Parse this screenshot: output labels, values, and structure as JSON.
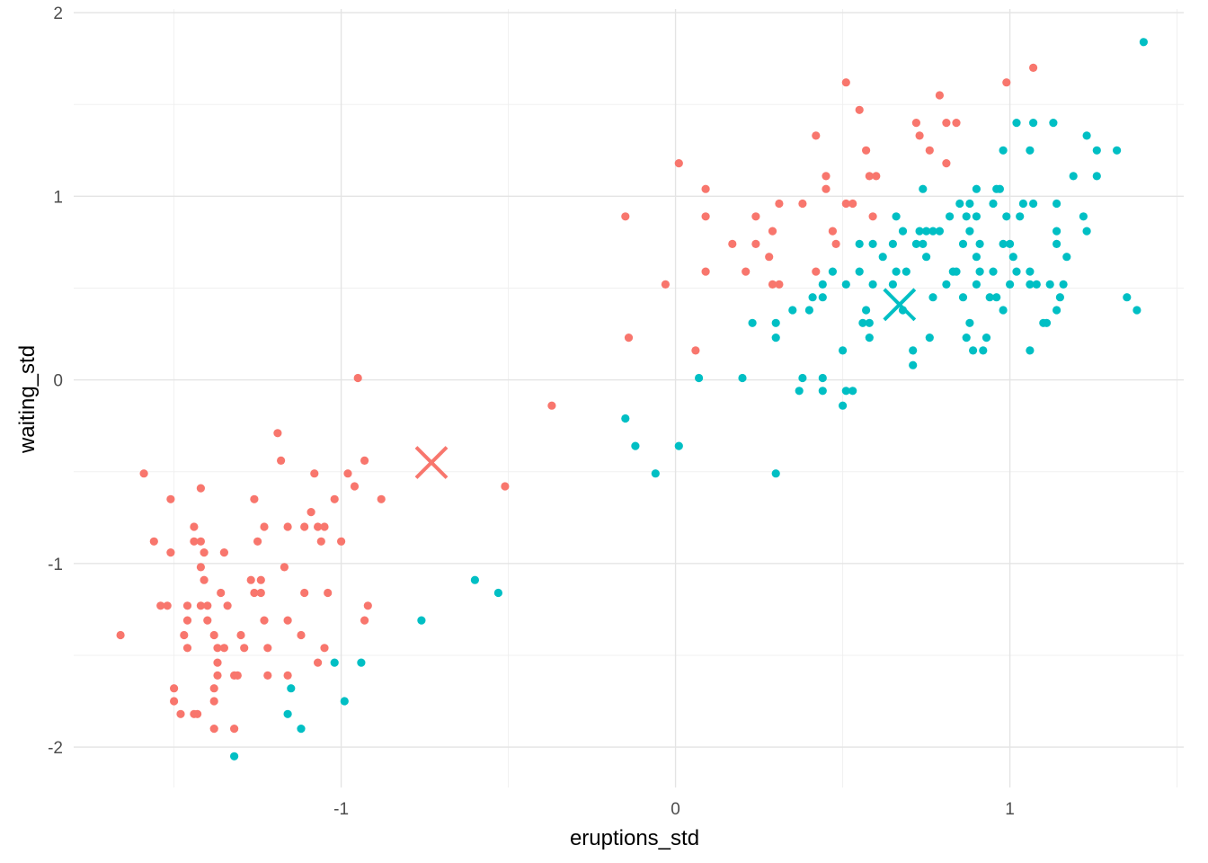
{
  "chart_data": {
    "type": "scatter",
    "title": "",
    "xlabel": "eruptions_std",
    "ylabel": "waiting_std",
    "xlim": [
      -1.8,
      1.52
    ],
    "ylim": [
      -2.22,
      2.02
    ],
    "x_ticks": [
      -1,
      0,
      1
    ],
    "x_tick_labels": [
      "-1",
      "0",
      "1"
    ],
    "y_ticks": [
      -2,
      -1,
      0,
      1,
      2
    ],
    "y_tick_labels": [
      "-2",
      "-1",
      "0",
      "1",
      "2"
    ],
    "grid": true,
    "legend": "none",
    "series": [
      {
        "color": "#F8766D",
        "marker": "circle",
        "points": [
          [
            -1.66,
            -1.39
          ],
          [
            -1.59,
            -0.51
          ],
          [
            -1.56,
            -0.88
          ],
          [
            -1.54,
            -1.23
          ],
          [
            -1.52,
            -1.23
          ],
          [
            -1.51,
            -0.65
          ],
          [
            -1.51,
            -0.94
          ],
          [
            -1.5,
            -1.75
          ],
          [
            -1.5,
            -1.68
          ],
          [
            -1.48,
            -1.82
          ],
          [
            -1.47,
            -1.39
          ],
          [
            -1.46,
            -1.23
          ],
          [
            -1.46,
            -1.31
          ],
          [
            -1.46,
            -1.46
          ],
          [
            -1.44,
            -1.82
          ],
          [
            -1.44,
            -0.8
          ],
          [
            -1.44,
            -0.88
          ],
          [
            -1.43,
            -1.82
          ],
          [
            -1.42,
            -1.02
          ],
          [
            -1.42,
            -0.88
          ],
          [
            -1.42,
            -0.59
          ],
          [
            -1.42,
            -1.23
          ],
          [
            -1.41,
            -0.94
          ],
          [
            -1.41,
            -1.09
          ],
          [
            -1.4,
            -1.23
          ],
          [
            -1.4,
            -1.31
          ],
          [
            -1.38,
            -1.75
          ],
          [
            -1.38,
            -1.68
          ],
          [
            -1.38,
            -1.39
          ],
          [
            -1.38,
            -1.9
          ],
          [
            -1.37,
            -1.61
          ],
          [
            -1.37,
            -1.54
          ],
          [
            -1.37,
            -1.46
          ],
          [
            -1.36,
            -1.16
          ],
          [
            -1.35,
            -0.94
          ],
          [
            -1.35,
            -1.46
          ],
          [
            -1.34,
            -1.23
          ],
          [
            -1.32,
            -1.9
          ],
          [
            -1.32,
            -1.61
          ],
          [
            -1.31,
            -1.61
          ],
          [
            -1.3,
            -1.39
          ],
          [
            -1.29,
            -1.46
          ],
          [
            -1.27,
            -1.09
          ],
          [
            -1.26,
            -1.16
          ],
          [
            -1.26,
            -0.65
          ],
          [
            -1.25,
            -0.88
          ],
          [
            -1.24,
            -1.16
          ],
          [
            -1.24,
            -1.09
          ],
          [
            -1.23,
            -0.8
          ],
          [
            -1.23,
            -1.31
          ],
          [
            -1.22,
            -1.61
          ],
          [
            -1.22,
            -1.46
          ],
          [
            -1.19,
            -0.29
          ],
          [
            -1.18,
            -0.44
          ],
          [
            -1.17,
            -1.02
          ],
          [
            -1.16,
            -0.8
          ],
          [
            -1.16,
            -1.31
          ],
          [
            -1.16,
            -1.61
          ],
          [
            -1.12,
            -1.39
          ],
          [
            -1.11,
            -0.8
          ],
          [
            -1.11,
            -1.16
          ],
          [
            -1.09,
            -0.72
          ],
          [
            -1.08,
            -0.51
          ],
          [
            -1.07,
            -1.54
          ],
          [
            -1.07,
            -0.8
          ],
          [
            -1.06,
            -0.88
          ],
          [
            -1.05,
            -0.8
          ],
          [
            -1.05,
            -1.46
          ],
          [
            -1.04,
            -1.16
          ],
          [
            -1.02,
            -0.65
          ],
          [
            -1.0,
            -0.88
          ],
          [
            -0.98,
            -0.51
          ],
          [
            -0.96,
            -0.58
          ],
          [
            -0.95,
            0.01
          ],
          [
            -0.93,
            -1.31
          ],
          [
            -0.93,
            -0.44
          ],
          [
            -0.92,
            -1.23
          ],
          [
            -0.88,
            -0.65
          ],
          [
            -0.51,
            -0.58
          ],
          [
            -0.37,
            -0.14
          ],
          [
            -0.15,
            0.89
          ],
          [
            -0.14,
            0.23
          ],
          [
            -0.03,
            0.52
          ],
          [
            0.01,
            1.18
          ],
          [
            0.06,
            0.16
          ],
          [
            0.09,
            1.04
          ],
          [
            0.09,
            0.89
          ],
          [
            0.09,
            0.59
          ],
          [
            0.17,
            0.74
          ],
          [
            0.21,
            0.59
          ],
          [
            0.24,
            0.89
          ],
          [
            0.24,
            0.74
          ],
          [
            0.28,
            0.67
          ],
          [
            0.29,
            0.81
          ],
          [
            0.29,
            0.52
          ],
          [
            0.31,
            0.52
          ],
          [
            0.31,
            0.96
          ],
          [
            0.38,
            0.96
          ],
          [
            0.42,
            0.59
          ],
          [
            0.42,
            1.33
          ],
          [
            0.45,
            1.11
          ],
          [
            0.45,
            1.04
          ],
          [
            0.47,
            0.81
          ],
          [
            0.48,
            0.74
          ],
          [
            0.51,
            0.96
          ],
          [
            0.51,
            1.62
          ],
          [
            0.53,
            0.96
          ],
          [
            0.55,
            1.47
          ],
          [
            0.57,
            1.25
          ],
          [
            0.58,
            1.11
          ],
          [
            0.59,
            0.89
          ],
          [
            0.6,
            1.11
          ],
          [
            0.72,
            1.4
          ],
          [
            0.73,
            1.33
          ],
          [
            0.76,
            1.25
          ],
          [
            0.79,
            1.55
          ],
          [
            0.81,
            1.18
          ],
          [
            0.81,
            1.4
          ],
          [
            0.84,
            1.4
          ],
          [
            0.99,
            1.62
          ],
          [
            1.07,
            1.7
          ]
        ]
      },
      {
        "color": "#00BFC4",
        "marker": "circle",
        "points": [
          [
            -1.32,
            -2.05
          ],
          [
            -1.16,
            -1.82
          ],
          [
            -1.15,
            -1.68
          ],
          [
            -1.12,
            -1.9
          ],
          [
            -1.02,
            -1.54
          ],
          [
            -0.99,
            -1.75
          ],
          [
            -0.94,
            -1.54
          ],
          [
            -0.76,
            -1.31
          ],
          [
            -0.6,
            -1.09
          ],
          [
            -0.53,
            -1.16
          ],
          [
            -0.15,
            -0.21
          ],
          [
            -0.12,
            -0.36
          ],
          [
            -0.06,
            -0.51
          ],
          [
            0.01,
            -0.36
          ],
          [
            0.07,
            0.01
          ],
          [
            0.2,
            0.01
          ],
          [
            0.23,
            0.31
          ],
          [
            0.3,
            0.23
          ],
          [
            0.3,
            0.31
          ],
          [
            0.3,
            -0.51
          ],
          [
            0.35,
            0.38
          ],
          [
            0.37,
            -0.06
          ],
          [
            0.38,
            0.01
          ],
          [
            0.4,
            0.38
          ],
          [
            0.41,
            0.45
          ],
          [
            0.44,
            0.45
          ],
          [
            0.44,
            0.52
          ],
          [
            0.44,
            -0.06
          ],
          [
            0.44,
            0.01
          ],
          [
            0.47,
            0.59
          ],
          [
            0.5,
            0.16
          ],
          [
            0.5,
            -0.14
          ],
          [
            0.51,
            0.52
          ],
          [
            0.51,
            -0.06
          ],
          [
            0.53,
            -0.06
          ],
          [
            0.55,
            0.74
          ],
          [
            0.55,
            0.59
          ],
          [
            0.56,
            0.31
          ],
          [
            0.57,
            0.38
          ],
          [
            0.58,
            0.31
          ],
          [
            0.58,
            0.23
          ],
          [
            0.59,
            0.74
          ],
          [
            0.59,
            0.52
          ],
          [
            0.62,
            0.67
          ],
          [
            0.65,
            0.52
          ],
          [
            0.65,
            0.74
          ],
          [
            0.66,
            0.89
          ],
          [
            0.66,
            0.59
          ],
          [
            0.68,
            0.81
          ],
          [
            0.68,
            0.38
          ],
          [
            0.69,
            0.59
          ],
          [
            0.71,
            0.16
          ],
          [
            0.71,
            0.08
          ],
          [
            0.72,
            0.74
          ],
          [
            0.73,
            0.81
          ],
          [
            0.74,
            0.74
          ],
          [
            0.74,
            1.04
          ],
          [
            0.75,
            0.67
          ],
          [
            0.75,
            0.81
          ],
          [
            0.76,
            0.23
          ],
          [
            0.77,
            0.45
          ],
          [
            0.77,
            0.81
          ],
          [
            0.79,
            0.81
          ],
          [
            0.81,
            0.52
          ],
          [
            0.82,
            0.89
          ],
          [
            0.83,
            0.59
          ],
          [
            0.84,
            0.59
          ],
          [
            0.85,
            0.96
          ],
          [
            0.86,
            0.45
          ],
          [
            0.86,
            0.74
          ],
          [
            0.87,
            0.89
          ],
          [
            0.87,
            0.23
          ],
          [
            0.88,
            0.31
          ],
          [
            0.88,
            0.81
          ],
          [
            0.88,
            0.96
          ],
          [
            0.89,
            0.16
          ],
          [
            0.9,
            0.67
          ],
          [
            0.9,
            0.52
          ],
          [
            0.9,
            1.04
          ],
          [
            0.9,
            0.89
          ],
          [
            0.91,
            0.59
          ],
          [
            0.91,
            0.74
          ],
          [
            0.92,
            0.16
          ],
          [
            0.93,
            0.23
          ],
          [
            0.94,
            0.45
          ],
          [
            0.95,
            0.96
          ],
          [
            0.95,
            0.59
          ],
          [
            0.96,
            1.04
          ],
          [
            0.96,
            0.45
          ],
          [
            0.97,
            1.04
          ],
          [
            0.98,
            0.74
          ],
          [
            0.98,
            1.25
          ],
          [
            0.98,
            0.38
          ],
          [
            0.99,
            0.89
          ],
          [
            1.0,
            0.52
          ],
          [
            1.0,
            0.74
          ],
          [
            1.01,
            0.67
          ],
          [
            1.02,
            1.4
          ],
          [
            1.02,
            0.59
          ],
          [
            1.03,
            0.89
          ],
          [
            1.04,
            0.96
          ],
          [
            1.06,
            0.16
          ],
          [
            1.06,
            1.25
          ],
          [
            1.06,
            0.59
          ],
          [
            1.06,
            0.52
          ],
          [
            1.07,
            0.96
          ],
          [
            1.07,
            1.4
          ],
          [
            1.08,
            0.52
          ],
          [
            1.1,
            0.31
          ],
          [
            1.11,
            0.31
          ],
          [
            1.12,
            0.52
          ],
          [
            1.13,
            1.4
          ],
          [
            1.14,
            0.96
          ],
          [
            1.14,
            0.81
          ],
          [
            1.14,
            0.74
          ],
          [
            1.14,
            0.38
          ],
          [
            1.15,
            0.45
          ],
          [
            1.16,
            0.52
          ],
          [
            1.17,
            0.67
          ],
          [
            1.19,
            1.11
          ],
          [
            1.22,
            0.89
          ],
          [
            1.23,
            1.33
          ],
          [
            1.23,
            0.81
          ],
          [
            1.26,
            1.25
          ],
          [
            1.26,
            1.11
          ],
          [
            1.32,
            1.25
          ],
          [
            1.35,
            0.45
          ],
          [
            1.38,
            0.38
          ],
          [
            1.4,
            1.84
          ]
        ]
      }
    ],
    "centroids": [
      {
        "x": -0.73,
        "y": -0.45,
        "color": "#F8766D",
        "marker": "x"
      },
      {
        "x": 0.67,
        "y": 0.41,
        "color": "#00BFC4",
        "marker": "x"
      }
    ]
  }
}
